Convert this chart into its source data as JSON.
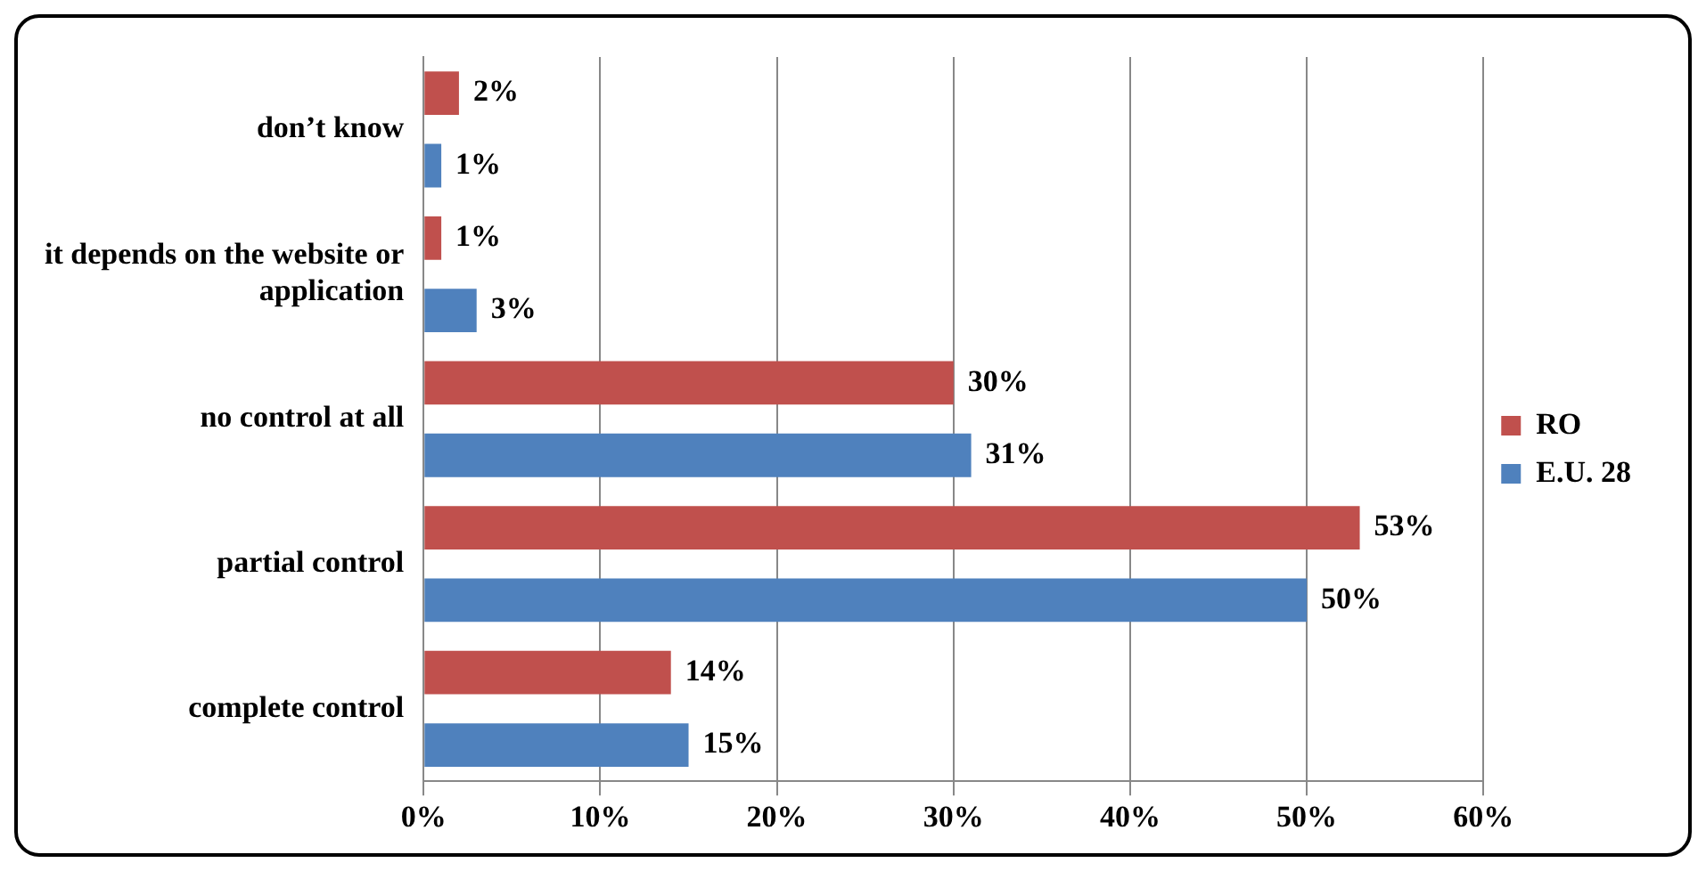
{
  "chart_data": {
    "type": "bar",
    "orientation": "horizontal",
    "categories": [
      "don’t know",
      "it depends on the website or application",
      "no control at all",
      "partial control",
      "complete control"
    ],
    "series": [
      {
        "name": "RO",
        "color": "#c0504d",
        "values": [
          2,
          1,
          30,
          53,
          14
        ],
        "value_labels": [
          "2%",
          "1%",
          "30%",
          "53%",
          "14%"
        ]
      },
      {
        "name": "E.U. 28",
        "color": "#4f81bd",
        "values": [
          1,
          3,
          31,
          50,
          15
        ],
        "value_labels": [
          "1%",
          "3%",
          "31%",
          "50%",
          "15%"
        ]
      }
    ],
    "xlim": [
      0,
      60
    ],
    "xticks": [
      {
        "value": 0,
        "label": "0%"
      },
      {
        "value": 10,
        "label": "10%"
      },
      {
        "value": 20,
        "label": "20%"
      },
      {
        "value": 30,
        "label": "30%"
      },
      {
        "value": 40,
        "label": "40%"
      },
      {
        "value": 50,
        "label": "50%"
      },
      {
        "value": 60,
        "label": "60%"
      }
    ],
    "grid": "x",
    "legend": "right"
  }
}
